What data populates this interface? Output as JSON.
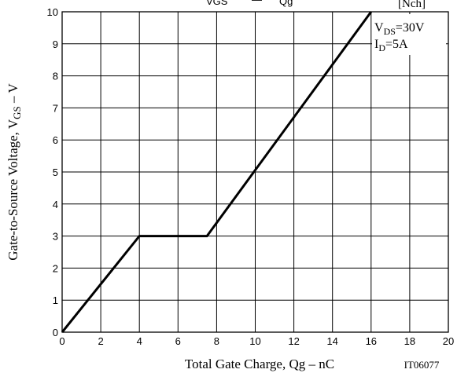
{
  "chart_data": {
    "type": "line",
    "title_main": "VGS",
    "title_sep": "—",
    "title_tail": "Qg",
    "part_tag": "[Nch]",
    "xlabel": "Total Gate Charge, Qg  –  nC",
    "ylabel_prefix": "Gate-to-Source Voltage, V",
    "ylabel_sub": "GS",
    "ylabel_suffix": "  –  V",
    "figure_id": "IT06077",
    "xlim": [
      0,
      20
    ],
    "ylim": [
      0,
      10
    ],
    "x_ticks": [
      0,
      2,
      4,
      6,
      8,
      10,
      12,
      14,
      16,
      18,
      20
    ],
    "y_ticks": [
      0,
      1,
      2,
      3,
      4,
      5,
      6,
      7,
      8,
      9,
      10
    ],
    "grid": true,
    "conditions": [
      {
        "main": "V",
        "sub": "DS",
        "rest": "=30V"
      },
      {
        "main": "I",
        "sub": "D",
        "rest": "=5A"
      }
    ],
    "series": [
      {
        "x": [
          0,
          4,
          7.5,
          16
        ],
        "y": [
          0,
          3,
          3,
          10
        ]
      }
    ]
  }
}
